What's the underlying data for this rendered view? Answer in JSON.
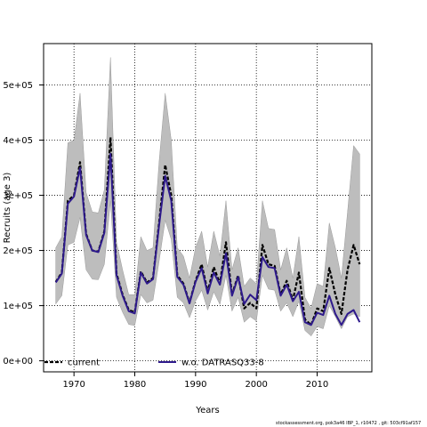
{
  "chart_data": {
    "type": "line",
    "title": "",
    "xlabel": "Years",
    "ylabel": "Recruits (age 3)",
    "xlim": [
      1965,
      2019
    ],
    "ylim": [
      -20000,
      575000
    ],
    "grid": true,
    "legend_position": "bottom",
    "x_ticks": [
      1970,
      1980,
      1990,
      2000,
      2010
    ],
    "x_tick_labels": [
      "1970",
      "1980",
      "1990",
      "2000",
      "2010"
    ],
    "y_ticks": [
      0,
      100000,
      200000,
      300000,
      400000,
      500000
    ],
    "y_tick_labels": [
      "0e+00",
      "1e+05",
      "2e+05",
      "3e+05",
      "4e+05",
      "5e+05"
    ],
    "x": [
      1967,
      1968,
      1969,
      1970,
      1971,
      1972,
      1973,
      1974,
      1975,
      1976,
      1977,
      1978,
      1979,
      1980,
      1981,
      1982,
      1983,
      1984,
      1985,
      1986,
      1987,
      1988,
      1989,
      1990,
      1991,
      1992,
      1993,
      1994,
      1995,
      1996,
      1997,
      1998,
      1999,
      2000,
      2001,
      2002,
      2003,
      2004,
      2005,
      2006,
      2007,
      2008,
      2009,
      2010,
      2011,
      2012,
      2013,
      2014,
      2015,
      2016,
      2017
    ],
    "series": [
      {
        "name": "current",
        "color": "#000000",
        "style": "dashed",
        "values": [
          143000,
          160000,
          290000,
          300000,
          360000,
          230000,
          200000,
          198000,
          235000,
          405000,
          158000,
          120000,
          92000,
          88000,
          162000,
          142000,
          150000,
          250000,
          355000,
          300000,
          155000,
          140000,
          105000,
          145000,
          175000,
          125000,
          170000,
          140000,
          215000,
          120000,
          155000,
          95000,
          105000,
          95000,
          210000,
          175000,
          172000,
          120000,
          145000,
          110000,
          160000,
          75000,
          65000,
          95000,
          90000,
          168000,
          120000,
          85000,
          165000,
          210000,
          175000
        ]
      },
      {
        "name": "w.o. DATRASQ33-8",
        "color": "#2e1a8c",
        "style": "solid",
        "values": [
          142000,
          158000,
          285000,
          298000,
          350000,
          228000,
          200000,
          197000,
          232000,
          375000,
          155000,
          118000,
          90000,
          86000,
          160000,
          140000,
          148000,
          245000,
          335000,
          290000,
          152000,
          138000,
          104000,
          143000,
          168000,
          122000,
          160000,
          138000,
          195000,
          118000,
          152000,
          103000,
          120000,
          110000,
          188000,
          170000,
          168000,
          118000,
          138000,
          108000,
          125000,
          70000,
          65000,
          87000,
          83000,
          118000,
          85000,
          65000,
          85000,
          92000,
          70000
        ]
      }
    ],
    "confidence_band": {
      "color": "#bdbdbd",
      "upper": [
        205000,
        225000,
        395000,
        400000,
        485000,
        305000,
        270000,
        268000,
        310000,
        550000,
        215000,
        165000,
        120000,
        120000,
        225000,
        200000,
        205000,
        360000,
        485000,
        400000,
        205000,
        190000,
        150000,
        205000,
        235000,
        170000,
        235000,
        190000,
        290000,
        165000,
        205000,
        135000,
        150000,
        140000,
        290000,
        240000,
        238000,
        165000,
        205000,
        150000,
        225000,
        115000,
        95000,
        140000,
        135000,
        250000,
        205000,
        150000,
        270000,
        390000,
        375000
      ],
      "lower": [
        103000,
        118000,
        210000,
        215000,
        260000,
        165000,
        148000,
        147000,
        175000,
        290000,
        115000,
        88000,
        66000,
        64000,
        120000,
        105000,
        110000,
        180000,
        255000,
        220000,
        115000,
        105000,
        78000,
        108000,
        128000,
        92000,
        125000,
        102000,
        155000,
        90000,
        115000,
        70000,
        80000,
        72000,
        155000,
        130000,
        128000,
        90000,
        105000,
        80000,
        108000,
        55000,
        45000,
        62000,
        58000,
        100000,
        80000,
        58000,
        80000,
        85000,
        80000
      ]
    }
  },
  "footer_text": "stockassessment.org, pok3a46 IBP_1, r10472 , git: 503cf91af157"
}
